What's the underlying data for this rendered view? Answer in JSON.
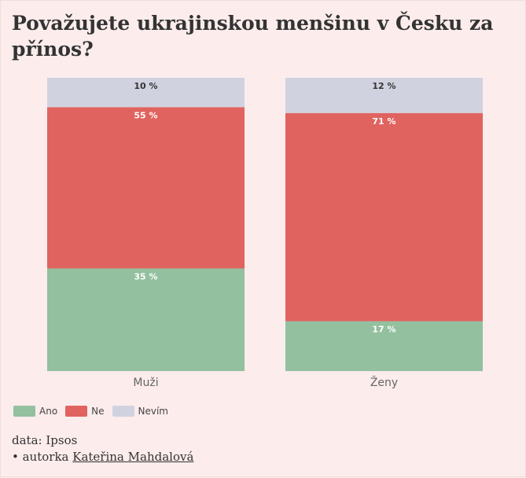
{
  "chart_data": {
    "type": "bar",
    "stacked": true,
    "title": "Považujete ukrajinskou menšinu v Česku za přínos?",
    "categories": [
      "Muži",
      "Ženy"
    ],
    "series": [
      {
        "name": "Ano",
        "values": [
          35,
          17
        ],
        "labels": [
          "35 %",
          "17 %"
        ],
        "color": "#93c09f"
      },
      {
        "name": "Ne",
        "values": [
          55,
          71
        ],
        "labels": [
          "55 %",
          "71 %"
        ],
        "color": "#e0635f"
      },
      {
        "name": "Nevím",
        "values": [
          10,
          12
        ],
        "labels": [
          "10 %",
          "12 %"
        ],
        "color": "#d1d2df"
      }
    ],
    "ylim": [
      0,
      100
    ],
    "legend": "bottom-left",
    "grid": false
  },
  "footer": {
    "source": "data: Ipsos",
    "author_prefix": "• autorka ",
    "author_name": "Kateřina Mahdalová"
  }
}
